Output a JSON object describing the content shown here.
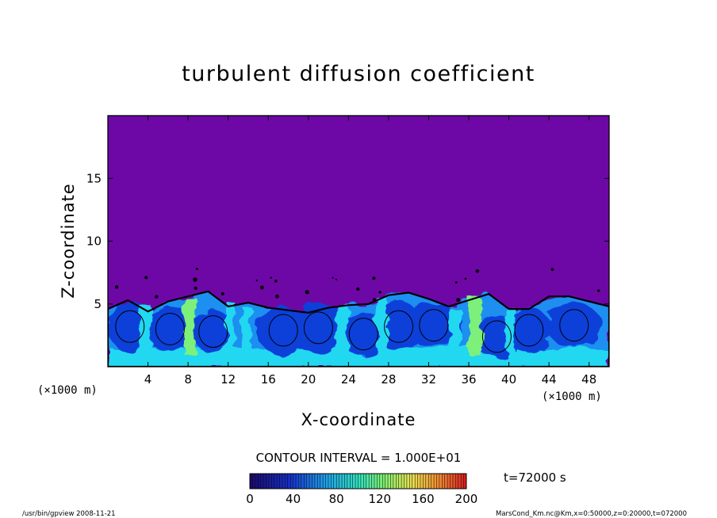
{
  "chart_data": {
    "type": "heatmap",
    "title": "turbulent diffusion coefficient",
    "xlabel": "X-coordinate",
    "ylabel": "Z-coordinate",
    "x_unit": "(×1000 m)",
    "y_unit": "(×1000 m)",
    "xlim": [
      0,
      50
    ],
    "ylim": [
      0,
      20
    ],
    "xticks": [
      4,
      8,
      12,
      16,
      20,
      24,
      28,
      32,
      36,
      40,
      44,
      48
    ],
    "yticks": [
      5,
      10,
      15
    ],
    "background_value": 0,
    "boundary_layer_top": [
      [
        0,
        4.6
      ],
      [
        2,
        5.3
      ],
      [
        4,
        4.4
      ],
      [
        6,
        5.2
      ],
      [
        8,
        5.6
      ],
      [
        10,
        6.0
      ],
      [
        12,
        4.8
      ],
      [
        14,
        5.1
      ],
      [
        16,
        4.7
      ],
      [
        18,
        4.5
      ],
      [
        20,
        4.3
      ],
      [
        22,
        4.7
      ],
      [
        24,
        4.9
      ],
      [
        26,
        5.0
      ],
      [
        28,
        5.7
      ],
      [
        30,
        5.9
      ],
      [
        32,
        5.4
      ],
      [
        34,
        4.8
      ],
      [
        36,
        5.3
      ],
      [
        38,
        5.8
      ],
      [
        40,
        4.6
      ],
      [
        42,
        4.6
      ],
      [
        44,
        5.6
      ],
      [
        46,
        5.6
      ],
      [
        48,
        5.2
      ],
      [
        50,
        4.8
      ]
    ],
    "colorbar": {
      "min": 0,
      "max": 200,
      "interval": 10,
      "ticks": [
        "0",
        "40",
        "80",
        "120",
        "160",
        "200"
      ]
    },
    "colors": {
      "background": "#6d08a6",
      "low": "#0a3fd9",
      "mid": "#1e8ff0",
      "high": "#22d8f0",
      "peak": "#7cf07a"
    }
  },
  "contour_interval": "CONTOUR INTERVAL = 1.000E+01",
  "time_label": "t=72000 s",
  "footer_left": "/usr/bin/gpview   2008-11-21",
  "footer_right": "MarsCond_Km.nc@Km,x=0:50000,z=0:20000,t=072000"
}
